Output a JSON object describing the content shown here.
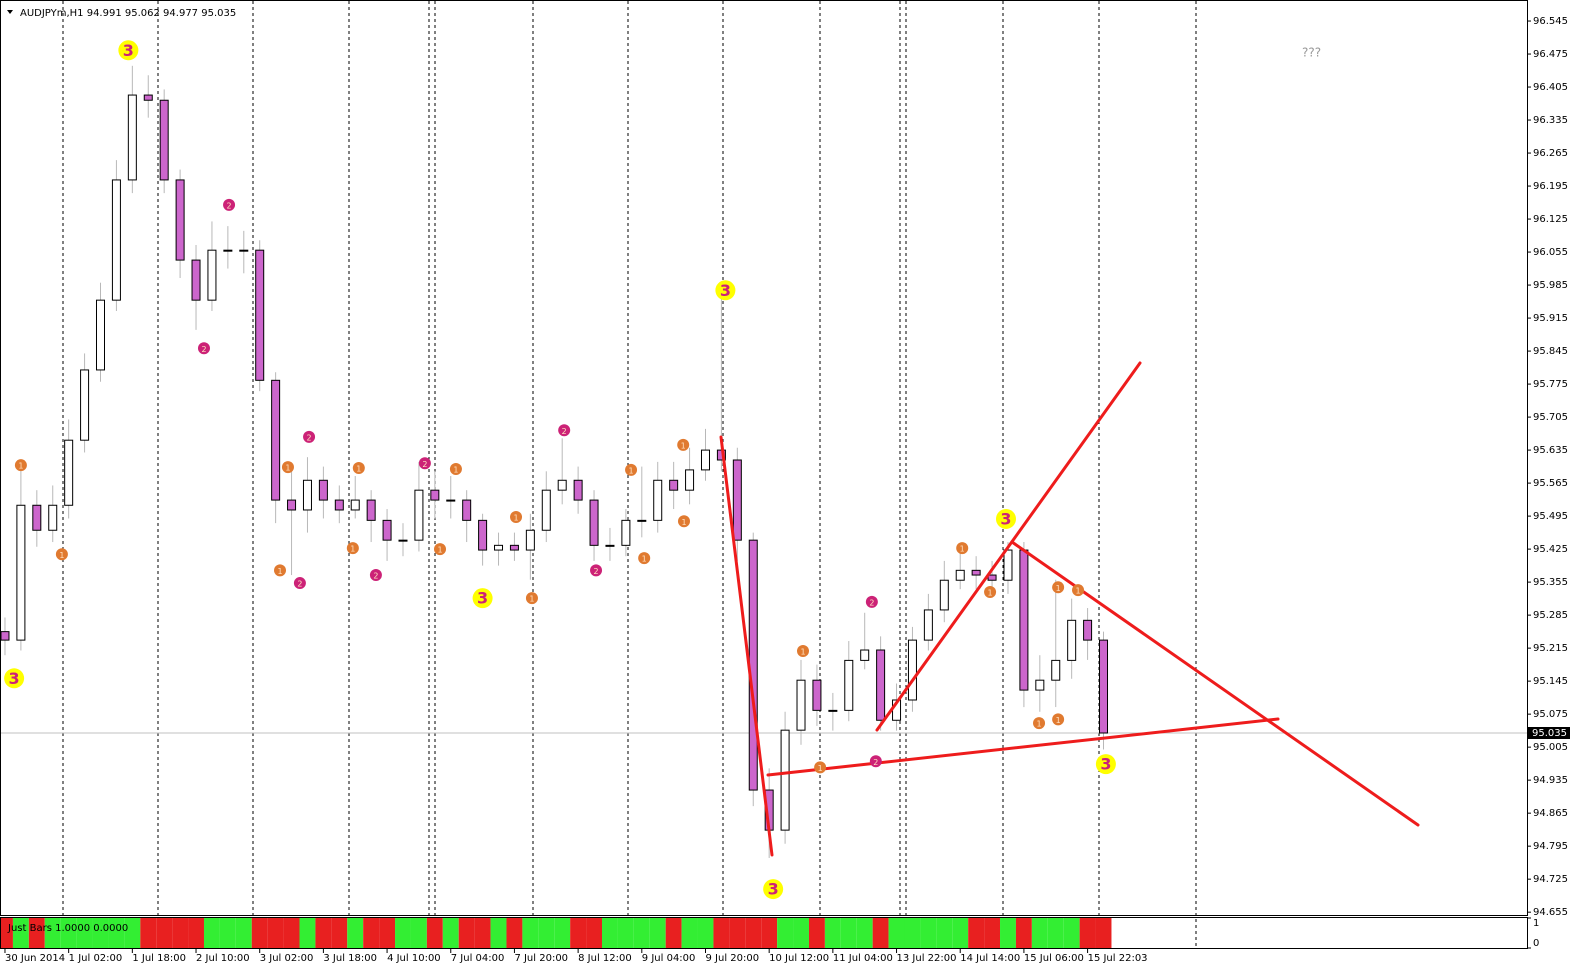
{
  "chart_data": {
    "type": "candlestick",
    "title": "AUDJPYm,H1  94.991 95.062 94.977 95.035",
    "annotation": "???",
    "x": [
      0,
      4,
      8,
      12,
      16,
      20,
      24,
      28,
      32,
      36,
      40,
      44,
      48,
      52,
      56,
      60,
      64,
      68,
      72,
      76,
      80,
      84,
      88,
      92,
      96,
      100,
      104,
      108,
      112,
      116,
      120,
      124,
      128,
      132,
      136,
      140,
      144,
      148,
      152,
      156,
      160,
      164,
      168,
      172,
      176,
      180,
      184,
      188,
      192,
      196,
      200,
      204,
      208,
      212,
      216,
      220,
      224,
      228,
      232,
      236,
      240,
      244,
      248,
      252,
      256,
      260,
      264,
      268,
      272,
      276
    ],
    "open": [
      95.25,
      95.232,
      95.518,
      95.465,
      95.518,
      95.656,
      95.805,
      95.953,
      96.208,
      96.388,
      96.377,
      96.208,
      96.038,
      95.953,
      96.059,
      96.059,
      96.059,
      95.783,
      95.529,
      95.508,
      95.571,
      95.529,
      95.508,
      95.529,
      95.486,
      95.444,
      95.444,
      95.55,
      95.529,
      95.529,
      95.486,
      95.423,
      95.433,
      95.423,
      95.465,
      95.55,
      95.571,
      95.529,
      95.433,
      95.433,
      95.486,
      95.486,
      95.571,
      95.55,
      95.593,
      95.635,
      95.614,
      95.444,
      94.914,
      94.829,
      95.041,
      95.147,
      95.083,
      95.083,
      95.189,
      95.211,
      95.062,
      95.105,
      95.232,
      95.296,
      95.359,
      95.38,
      95.37,
      95.359,
      95.423,
      95.126,
      95.147,
      95.189,
      95.274,
      95.232
    ],
    "high": [
      95.28,
      95.6,
      95.55,
      95.56,
      95.7,
      95.84,
      95.99,
      96.25,
      96.45,
      96.43,
      96.4,
      96.23,
      96.07,
      96.12,
      96.11,
      96.1,
      96.08,
      95.8,
      95.6,
      95.62,
      95.6,
      95.56,
      95.58,
      95.55,
      95.51,
      95.48,
      95.61,
      95.59,
      95.58,
      95.55,
      95.5,
      95.46,
      95.46,
      95.5,
      95.59,
      95.66,
      95.6,
      95.55,
      95.47,
      95.51,
      95.6,
      95.61,
      95.61,
      95.64,
      95.68,
      95.97,
      95.64,
      95.46,
      94.96,
      95.08,
      95.19,
      95.18,
      95.12,
      95.23,
      95.29,
      95.24,
      95.14,
      95.26,
      95.33,
      95.4,
      95.43,
      95.41,
      95.4,
      95.44,
      95.44,
      95.2,
      95.36,
      95.32,
      95.3,
      95.25
    ],
    "low": [
      95.2,
      95.21,
      95.43,
      95.44,
      95.49,
      95.63,
      95.78,
      95.93,
      96.18,
      96.34,
      96.18,
      96.0,
      95.89,
      95.93,
      96.02,
      96.01,
      95.76,
      95.48,
      95.37,
      95.46,
      95.49,
      95.48,
      95.49,
      95.44,
      95.4,
      95.41,
      95.42,
      95.49,
      95.49,
      95.44,
      95.39,
      95.39,
      95.4,
      95.36,
      95.44,
      95.52,
      95.5,
      95.4,
      95.4,
      95.41,
      95.45,
      95.46,
      95.51,
      95.52,
      95.57,
      95.59,
      95.4,
      94.88,
      94.77,
      94.8,
      95.01,
      95.05,
      95.04,
      95.06,
      95.17,
      95.04,
      95.04,
      95.08,
      95.21,
      95.27,
      95.34,
      95.34,
      95.33,
      95.33,
      95.09,
      95.08,
      95.09,
      95.15,
      95.19,
      95.0
    ],
    "close": [
      95.232,
      95.518,
      95.465,
      95.518,
      95.656,
      95.805,
      95.953,
      96.208,
      96.388,
      96.377,
      96.208,
      96.038,
      95.953,
      96.059,
      96.059,
      96.059,
      95.783,
      95.529,
      95.508,
      95.571,
      95.529,
      95.508,
      95.529,
      95.486,
      95.444,
      95.444,
      95.55,
      95.529,
      95.529,
      95.486,
      95.423,
      95.433,
      95.423,
      95.465,
      95.55,
      95.571,
      95.529,
      95.433,
      95.433,
      95.486,
      95.486,
      95.571,
      95.55,
      95.593,
      95.635,
      95.614,
      95.444,
      94.914,
      94.829,
      95.041,
      95.147,
      95.083,
      95.083,
      95.189,
      95.211,
      95.062,
      95.105,
      95.232,
      95.296,
      95.359,
      95.38,
      95.37,
      95.359,
      95.423,
      95.126,
      95.147,
      95.189,
      95.274,
      95.232,
      95.035
    ],
    "colors": {
      "up": "#ffffff",
      "down": "#cc66cc",
      "wick": "#b8b8b8",
      "outline": "#000000"
    },
    "xlim": [
      -1.25,
      382.4
    ],
    "xticks": [
      {
        "value": 0,
        "label": "30 Jun 2014"
      },
      {
        "value": 16,
        "label": "1 Jul 02:00"
      },
      {
        "value": 32,
        "label": "1 Jul 18:00"
      },
      {
        "value": 48,
        "label": "2 Jul 10:00"
      },
      {
        "value": 64,
        "label": "3 Jul 02:00"
      },
      {
        "value": 80,
        "label": "3 Jul 18:00"
      },
      {
        "value": 96,
        "label": "4 Jul 10:00"
      },
      {
        "value": 112,
        "label": "7 Jul 04:00"
      },
      {
        "value": 128,
        "label": "7 Jul 20:00"
      },
      {
        "value": 144,
        "label": "8 Jul 12:00"
      },
      {
        "value": 160,
        "label": "9 Jul 04:00"
      },
      {
        "value": 176,
        "label": "9 Jul 20:00"
      },
      {
        "value": 192,
        "label": "10 Jul 12:00"
      },
      {
        "value": 208,
        "label": "11 Jul 04:00"
      },
      {
        "value": 224,
        "label": "13 Jul 22:00"
      },
      {
        "value": 240,
        "label": "14 Jul 14:00"
      },
      {
        "value": 256,
        "label": "15 Jul 06:00"
      },
      {
        "value": 272,
        "label": "15 Jul 22:03"
      }
    ],
    "ylim": [
      94.649,
      96.579
    ],
    "yticks": [
      96.545,
      96.475,
      96.405,
      96.335,
      96.265,
      96.195,
      96.125,
      96.055,
      95.985,
      95.915,
      95.845,
      95.775,
      95.705,
      95.635,
      95.565,
      95.495,
      95.425,
      95.355,
      95.285,
      95.215,
      95.145,
      95.075,
      95.005,
      94.935,
      94.865,
      94.795,
      94.725,
      94.655
    ],
    "indicator": {
      "name": "Just Bars 1.0000 0.0000",
      "ylim": [
        0,
        1
      ],
      "yticks": [
        1,
        0
      ],
      "up_color": "#33ee33",
      "down_color": "#e82020"
    },
    "markers": [
      {
        "label": "3",
        "x": 2.3,
        "y": 95.151,
        "color": "#ffff00"
      },
      {
        "label": "3",
        "x": 31,
        "y": 96.483,
        "color": "#ffff00"
      },
      {
        "label": "3",
        "x": 120,
        "y": 95.321,
        "color": "#ffff00"
      },
      {
        "label": "3",
        "x": 181,
        "y": 95.974,
        "color": "#ffff00"
      },
      {
        "label": "3",
        "x": 193,
        "y": 94.704,
        "color": "#ffff00"
      },
      {
        "label": "3",
        "x": 251.5,
        "y": 95.489,
        "color": "#ffff00"
      },
      {
        "label": "3",
        "x": 276.6,
        "y": 94.969,
        "color": "#ffff00"
      },
      {
        "label": "1",
        "x": 4.0,
        "y": 95.603,
        "color": "#e07a30"
      },
      {
        "label": "1",
        "x": 14.3,
        "y": 95.414,
        "color": "#e07a30"
      },
      {
        "label": "1",
        "x": 71.1,
        "y": 95.599,
        "color": "#e07a30"
      },
      {
        "label": "1",
        "x": 69.1,
        "y": 95.38,
        "color": "#e07a30"
      },
      {
        "label": "1",
        "x": 87.4,
        "y": 95.427,
        "color": "#e07a30"
      },
      {
        "label": "1",
        "x": 88.9,
        "y": 95.597,
        "color": "#e07a30"
      },
      {
        "label": "1",
        "x": 109.3,
        "y": 95.425,
        "color": "#e07a30"
      },
      {
        "label": "1",
        "x": 113.3,
        "y": 95.595,
        "color": "#e07a30"
      },
      {
        "label": "1",
        "x": 128.4,
        "y": 95.493,
        "color": "#e07a30"
      },
      {
        "label": "1",
        "x": 132.4,
        "y": 95.321,
        "color": "#e07a30"
      },
      {
        "label": "1",
        "x": 157.3,
        "y": 95.593,
        "color": "#e07a30"
      },
      {
        "label": "1",
        "x": 160.6,
        "y": 95.406,
        "color": "#e07a30"
      },
      {
        "label": "1",
        "x": 170.4,
        "y": 95.646,
        "color": "#e07a30"
      },
      {
        "label": "1",
        "x": 170.6,
        "y": 95.484,
        "color": "#e07a30"
      },
      {
        "label": "1",
        "x": 200.5,
        "y": 95.209,
        "color": "#e07a30"
      },
      {
        "label": "1",
        "x": 204.8,
        "y": 94.962,
        "color": "#e07a30"
      },
      {
        "label": "1",
        "x": 240.5,
        "y": 95.427,
        "color": "#e07a30"
      },
      {
        "label": "1",
        "x": 247.5,
        "y": 95.334,
        "color": "#e07a30"
      },
      {
        "label": "1",
        "x": 259.8,
        "y": 95.056,
        "color": "#e07a30"
      },
      {
        "label": "1",
        "x": 264.6,
        "y": 95.064,
        "color": "#e07a30"
      },
      {
        "label": "1",
        "x": 264.6,
        "y": 95.344,
        "color": "#e07a30"
      },
      {
        "label": "1",
        "x": 269.6,
        "y": 95.338,
        "color": "#e07a30"
      },
      {
        "label": "2",
        "x": 56.3,
        "y": 96.155,
        "color": "#cc2277"
      },
      {
        "label": "2",
        "x": 50.0,
        "y": 95.851,
        "color": "#cc2277"
      },
      {
        "label": "2",
        "x": 76.4,
        "y": 95.663,
        "color": "#cc2277"
      },
      {
        "label": "2",
        "x": 74.1,
        "y": 95.353,
        "color": "#cc2277"
      },
      {
        "label": "2",
        "x": 93.2,
        "y": 95.37,
        "color": "#cc2277"
      },
      {
        "label": "2",
        "x": 105.5,
        "y": 95.607,
        "color": "#cc2277"
      },
      {
        "label": "2",
        "x": 140.5,
        "y": 95.677,
        "color": "#cc2277"
      },
      {
        "label": "2",
        "x": 148.5,
        "y": 95.38,
        "color": "#cc2277"
      },
      {
        "label": "2",
        "x": 217.8,
        "y": 95.313,
        "color": "#cc2277"
      },
      {
        "label": "2",
        "x": 218.8,
        "y": 94.975,
        "color": "#cc2277"
      }
    ]
  }
}
